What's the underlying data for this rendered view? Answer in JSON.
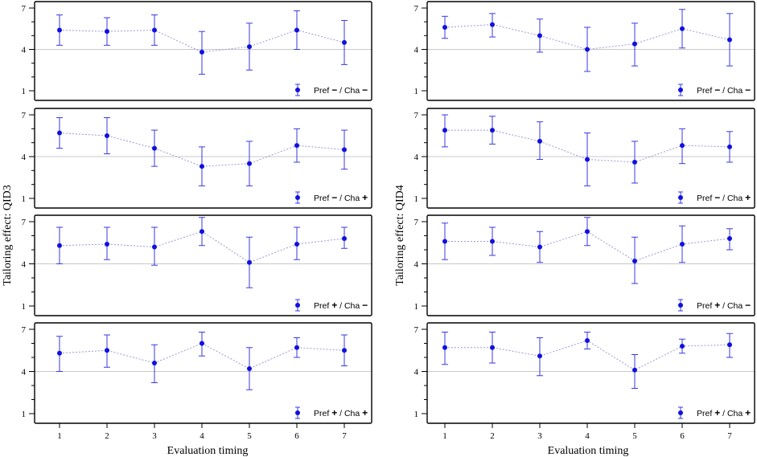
{
  "figure": {
    "left_ylabel": "Tailoring effect: QID3",
    "right_ylabel": "Tailoring effect: QID4",
    "xlabel": "Evaluation timing"
  },
  "colors": {
    "point": "#1010e0",
    "errorbar": "#3a3ae0",
    "connector": "#9a9ad8",
    "reference": "#c8c8c8",
    "frame": "#000000"
  },
  "chart_data": [
    {
      "type": "scatter",
      "column": "QID3",
      "legend_label": "Pref − / Cha −",
      "legend_parts": {
        "pref": "Pref",
        "pref_sign": "−",
        "sep": "/ Cha",
        "cha_sign": "−"
      },
      "x": [
        1,
        2,
        3,
        4,
        5,
        6,
        7
      ],
      "y": [
        5.4,
        5.3,
        5.4,
        3.8,
        4.2,
        5.4,
        4.5
      ],
      "lower": [
        4.3,
        4.3,
        4.3,
        2.2,
        2.5,
        4.0,
        2.9
      ],
      "upper": [
        6.5,
        6.3,
        6.5,
        5.3,
        5.9,
        6.8,
        6.1
      ],
      "ylim": [
        1,
        7
      ],
      "yticks": [
        1,
        4,
        7
      ],
      "reference_y": 4,
      "xticks": [
        1,
        2,
        3,
        4,
        5,
        6,
        7
      ]
    },
    {
      "type": "scatter",
      "column": "QID3",
      "legend_label": "Pref − / Cha +",
      "legend_parts": {
        "pref": "Pref",
        "pref_sign": "−",
        "sep": "/ Cha",
        "cha_sign": "+"
      },
      "x": [
        1,
        2,
        3,
        4,
        5,
        6,
        7
      ],
      "y": [
        5.7,
        5.5,
        4.6,
        3.3,
        3.5,
        4.8,
        4.5
      ],
      "lower": [
        4.6,
        4.2,
        3.3,
        1.9,
        1.9,
        3.6,
        3.1
      ],
      "upper": [
        6.8,
        6.8,
        5.9,
        4.7,
        5.1,
        6.0,
        5.9
      ],
      "ylim": [
        1,
        7
      ],
      "yticks": [
        1,
        4,
        7
      ],
      "reference_y": 4,
      "xticks": [
        1,
        2,
        3,
        4,
        5,
        6,
        7
      ]
    },
    {
      "type": "scatter",
      "column": "QID3",
      "legend_label": "Pref + / Cha −",
      "legend_parts": {
        "pref": "Pref",
        "pref_sign": "+",
        "sep": "/ Cha",
        "cha_sign": "−"
      },
      "x": [
        1,
        2,
        3,
        4,
        5,
        6,
        7
      ],
      "y": [
        5.3,
        5.4,
        5.2,
        6.3,
        4.1,
        5.4,
        5.8
      ],
      "lower": [
        4.0,
        4.3,
        3.9,
        5.3,
        2.3,
        4.3,
        5.1
      ],
      "upper": [
        6.6,
        6.6,
        6.6,
        7.3,
        5.9,
        6.6,
        6.6
      ],
      "ylim": [
        1,
        7
      ],
      "yticks": [
        1,
        4,
        7
      ],
      "reference_y": 4,
      "xticks": [
        1,
        2,
        3,
        4,
        5,
        6,
        7
      ]
    },
    {
      "type": "scatter",
      "column": "QID3",
      "legend_label": "Pref + / Cha +",
      "legend_parts": {
        "pref": "Pref",
        "pref_sign": "+",
        "sep": "/ Cha",
        "cha_sign": "+"
      },
      "x": [
        1,
        2,
        3,
        4,
        5,
        6,
        7
      ],
      "y": [
        5.3,
        5.5,
        4.6,
        6.0,
        4.2,
        5.7,
        5.5
      ],
      "lower": [
        4.0,
        4.3,
        3.2,
        5.1,
        2.7,
        5.0,
        4.4
      ],
      "upper": [
        6.5,
        6.6,
        5.9,
        6.8,
        5.7,
        6.4,
        6.6
      ],
      "ylim": [
        1,
        7
      ],
      "yticks": [
        1,
        4,
        7
      ],
      "reference_y": 4,
      "xticks": [
        1,
        2,
        3,
        4,
        5,
        6,
        7
      ]
    },
    {
      "type": "scatter",
      "column": "QID4",
      "legend_label": "Pref − / Cha −",
      "legend_parts": {
        "pref": "Pref",
        "pref_sign": "−",
        "sep": "/ Cha",
        "cha_sign": "−"
      },
      "x": [
        1,
        2,
        3,
        4,
        5,
        6,
        7
      ],
      "y": [
        5.6,
        5.8,
        5.0,
        4.0,
        4.4,
        5.5,
        4.7
      ],
      "lower": [
        4.8,
        4.9,
        3.8,
        2.4,
        2.8,
        4.1,
        2.8
      ],
      "upper": [
        6.4,
        6.6,
        6.2,
        5.6,
        5.9,
        6.9,
        6.6
      ],
      "ylim": [
        1,
        7
      ],
      "yticks": [
        1,
        4,
        7
      ],
      "reference_y": 4,
      "xticks": [
        1,
        2,
        3,
        4,
        5,
        6,
        7
      ]
    },
    {
      "type": "scatter",
      "column": "QID4",
      "legend_label": "Pref − / Cha +",
      "legend_parts": {
        "pref": "Pref",
        "pref_sign": "−",
        "sep": "/ Cha",
        "cha_sign": "+"
      },
      "x": [
        1,
        2,
        3,
        4,
        5,
        6,
        7
      ],
      "y": [
        5.9,
        5.9,
        5.1,
        3.8,
        3.6,
        4.8,
        4.7
      ],
      "lower": [
        4.7,
        4.9,
        3.8,
        1.9,
        2.1,
        3.5,
        3.6
      ],
      "upper": [
        7.0,
        6.9,
        6.5,
        5.7,
        5.1,
        6.0,
        5.8
      ],
      "ylim": [
        1,
        7
      ],
      "yticks": [
        1,
        4,
        7
      ],
      "reference_y": 4,
      "xticks": [
        1,
        2,
        3,
        4,
        5,
        6,
        7
      ]
    },
    {
      "type": "scatter",
      "column": "QID4",
      "legend_label": "Pref + / Cha −",
      "legend_parts": {
        "pref": "Pref",
        "pref_sign": "+",
        "sep": "/ Cha",
        "cha_sign": "−"
      },
      "x": [
        1,
        2,
        3,
        4,
        5,
        6,
        7
      ],
      "y": [
        5.6,
        5.6,
        5.2,
        6.3,
        4.2,
        5.4,
        5.8
      ],
      "lower": [
        4.3,
        4.6,
        4.1,
        5.3,
        2.6,
        4.1,
        5.0
      ],
      "upper": [
        6.9,
        6.6,
        6.3,
        7.3,
        5.9,
        6.7,
        6.5
      ],
      "ylim": [
        1,
        7
      ],
      "yticks": [
        1,
        4,
        7
      ],
      "reference_y": 4,
      "xticks": [
        1,
        2,
        3,
        4,
        5,
        6,
        7
      ]
    },
    {
      "type": "scatter",
      "column": "QID4",
      "legend_label": "Pref + / Cha +",
      "legend_parts": {
        "pref": "Pref",
        "pref_sign": "+",
        "sep": "/ Cha",
        "cha_sign": "+"
      },
      "x": [
        1,
        2,
        3,
        4,
        5,
        6,
        7
      ],
      "y": [
        5.7,
        5.7,
        5.1,
        6.2,
        4.1,
        5.8,
        5.9
      ],
      "lower": [
        4.5,
        4.6,
        3.7,
        5.6,
        2.8,
        5.3,
        5.0
      ],
      "upper": [
        6.8,
        6.8,
        6.4,
        6.8,
        5.2,
        6.3,
        6.7
      ],
      "ylim": [
        1,
        7
      ],
      "yticks": [
        1,
        4,
        7
      ],
      "reference_y": 4,
      "xticks": [
        1,
        2,
        3,
        4,
        5,
        6,
        7
      ]
    }
  ]
}
